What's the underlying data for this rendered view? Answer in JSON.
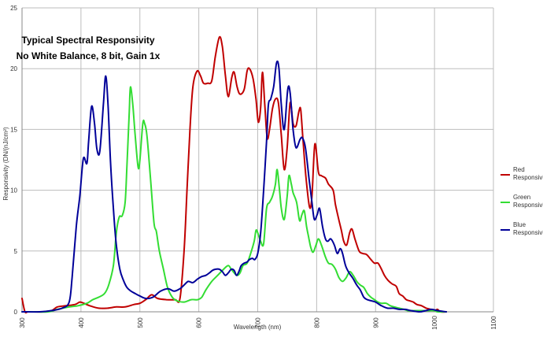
{
  "chart_data": {
    "type": "line",
    "title_lines": [
      "Typical Spectral Responsivity",
      "No White Balance, 8 bit, Gain 1x"
    ],
    "xlabel": "Wavelength (nm)",
    "ylabel": "Responsivity (DN/(nJ/cm²)",
    "xlim": [
      300,
      1100
    ],
    "ylim": [
      0,
      25
    ],
    "xticks": [
      "300",
      "400",
      "500",
      "600",
      "700",
      "800",
      "900",
      "1000",
      "1100"
    ],
    "yticks": [
      "0",
      "5",
      "10",
      "15",
      "20",
      "25"
    ],
    "grid": true,
    "legend_position": "right",
    "series": [
      {
        "name": "Red Responsivity",
        "color": "#c00000",
        "points": [
          [
            300,
            1.1
          ],
          [
            305,
            0
          ],
          [
            310,
            0
          ],
          [
            320,
            0
          ],
          [
            335,
            0
          ],
          [
            350,
            0.1
          ],
          [
            360,
            0.4
          ],
          [
            375,
            0.5
          ],
          [
            390,
            0.6
          ],
          [
            398,
            0.8
          ],
          [
            405,
            0.7
          ],
          [
            415,
            0.5
          ],
          [
            430,
            0.3
          ],
          [
            445,
            0.3
          ],
          [
            460,
            0.4
          ],
          [
            475,
            0.4
          ],
          [
            490,
            0.6
          ],
          [
            500,
            0.7
          ],
          [
            510,
            1.0
          ],
          [
            520,
            1.4
          ],
          [
            530,
            1.1
          ],
          [
            545,
            1.0
          ],
          [
            560,
            1.0
          ],
          [
            568,
            1.1
          ],
          [
            575,
            5
          ],
          [
            580,
            10
          ],
          [
            585,
            15
          ],
          [
            590,
            18.5
          ],
          [
            597,
            19.8
          ],
          [
            603,
            19.4
          ],
          [
            608,
            18.8
          ],
          [
            615,
            18.8
          ],
          [
            622,
            19.0
          ],
          [
            628,
            21
          ],
          [
            635,
            22.6
          ],
          [
            640,
            21.8
          ],
          [
            645,
            19.5
          ],
          [
            650,
            17.7
          ],
          [
            656,
            19.3
          ],
          [
            660,
            19.7
          ],
          [
            665,
            18.5
          ],
          [
            670,
            17.9
          ],
          [
            677,
            18.3
          ],
          [
            682,
            19.8
          ],
          [
            686,
            20.0
          ],
          [
            692,
            19.2
          ],
          [
            697,
            17.5
          ],
          [
            701,
            15.6
          ],
          [
            705,
            16.8
          ],
          [
            708,
            19.7
          ],
          [
            712,
            17.0
          ],
          [
            716,
            14.3
          ],
          [
            720,
            15.0
          ],
          [
            725,
            16.7
          ],
          [
            730,
            17.5
          ],
          [
            735,
            17.2
          ],
          [
            740,
            14.5
          ],
          [
            745,
            11.7
          ],
          [
            750,
            13.5
          ],
          [
            755,
            17.2
          ],
          [
            760,
            15.5
          ],
          [
            765,
            15.3
          ],
          [
            770,
            16.5
          ],
          [
            773,
            16.6
          ],
          [
            777,
            14.0
          ],
          [
            782,
            11.0
          ],
          [
            788,
            8.6
          ],
          [
            792,
            9.5
          ],
          [
            797,
            13.8
          ],
          [
            803,
            11.5
          ],
          [
            808,
            11.2
          ],
          [
            815,
            11.0
          ],
          [
            820,
            10.5
          ],
          [
            828,
            10.0
          ],
          [
            832,
            8.8
          ],
          [
            838,
            7.5
          ],
          [
            842,
            6.7
          ],
          [
            846,
            5.8
          ],
          [
            851,
            5.5
          ],
          [
            856,
            6.5
          ],
          [
            860,
            6.8
          ],
          [
            865,
            6.0
          ],
          [
            872,
            5.0
          ],
          [
            878,
            4.8
          ],
          [
            885,
            4.7
          ],
          [
            892,
            4.3
          ],
          [
            898,
            4.0
          ],
          [
            904,
            4.0
          ],
          [
            909,
            3.6
          ],
          [
            915,
            3.0
          ],
          [
            921,
            2.6
          ],
          [
            928,
            2.3
          ],
          [
            935,
            2.1
          ],
          [
            940,
            1.5
          ],
          [
            946,
            1.3
          ],
          [
            952,
            1.0
          ],
          [
            958,
            0.9
          ],
          [
            964,
            0.8
          ],
          [
            970,
            0.6
          ],
          [
            978,
            0.5
          ],
          [
            986,
            0.3
          ],
          [
            994,
            0.2
          ],
          [
            1000,
            0.1
          ],
          [
            1005,
            0.2
          ],
          [
            1010,
            0.0
          ],
          [
            1020,
            0.0
          ]
        ]
      },
      {
        "name": "Green Responsivity",
        "color": "#33dd33",
        "points": [
          [
            300,
            0
          ],
          [
            320,
            0
          ],
          [
            345,
            0
          ],
          [
            360,
            0.2
          ],
          [
            380,
            0.4
          ],
          [
            395,
            0.5
          ],
          [
            410,
            0.7
          ],
          [
            420,
            1.0
          ],
          [
            430,
            1.2
          ],
          [
            440,
            1.5
          ],
          [
            447,
            2.2
          ],
          [
            455,
            3.8
          ],
          [
            460,
            6.5
          ],
          [
            465,
            7.8
          ],
          [
            470,
            7.9
          ],
          [
            475,
            9
          ],
          [
            478,
            12
          ],
          [
            482,
            16.5
          ],
          [
            484,
            18.5
          ],
          [
            488,
            17.0
          ],
          [
            492,
            14.5
          ],
          [
            497,
            11.9
          ],
          [
            500,
            12.5
          ],
          [
            505,
            15.5
          ],
          [
            508,
            15.5
          ],
          [
            512,
            14.5
          ],
          [
            518,
            11.0
          ],
          [
            524,
            7.3
          ],
          [
            528,
            6.6
          ],
          [
            533,
            5.0
          ],
          [
            540,
            3.5
          ],
          [
            547,
            2.0
          ],
          [
            555,
            1.2
          ],
          [
            563,
            0.9
          ],
          [
            575,
            0.8
          ],
          [
            587,
            1.0
          ],
          [
            598,
            1.0
          ],
          [
            605,
            1.2
          ],
          [
            612,
            1.8
          ],
          [
            622,
            2.5
          ],
          [
            632,
            3.0
          ],
          [
            642,
            3.5
          ],
          [
            650,
            3.8
          ],
          [
            655,
            3.5
          ],
          [
            660,
            3.2
          ],
          [
            665,
            3.0
          ],
          [
            670,
            3.2
          ],
          [
            675,
            3.8
          ],
          [
            682,
            4.0
          ],
          [
            688,
            4.8
          ],
          [
            694,
            5.8
          ],
          [
            697,
            6.7
          ],
          [
            700,
            6.5
          ],
          [
            705,
            5.8
          ],
          [
            710,
            5.6
          ],
          [
            715,
            8.5
          ],
          [
            720,
            9.0
          ],
          [
            725,
            9.5
          ],
          [
            730,
            10.5
          ],
          [
            733,
            11.7
          ],
          [
            737,
            10.0
          ],
          [
            740,
            8.5
          ],
          [
            745,
            7.6
          ],
          [
            750,
            9.5
          ],
          [
            753,
            11.2
          ],
          [
            757,
            10.5
          ],
          [
            760,
            9.8
          ],
          [
            766,
            9.0
          ],
          [
            771,
            7.5
          ],
          [
            775,
            8.0
          ],
          [
            779,
            8.3
          ],
          [
            783,
            7.0
          ],
          [
            787,
            6.0
          ],
          [
            790,
            5.3
          ],
          [
            794,
            4.9
          ],
          [
            799,
            5.5
          ],
          [
            803,
            6.0
          ],
          [
            808,
            5.5
          ],
          [
            815,
            4.5
          ],
          [
            820,
            4.0
          ],
          [
            826,
            3.9
          ],
          [
            832,
            3.5
          ],
          [
            838,
            2.8
          ],
          [
            844,
            2.5
          ],
          [
            850,
            2.8
          ],
          [
            856,
            3.3
          ],
          [
            862,
            3.0
          ],
          [
            868,
            2.5
          ],
          [
            874,
            2.2
          ],
          [
            880,
            2.0
          ],
          [
            886,
            1.5
          ],
          [
            892,
            1.2
          ],
          [
            898,
            1.0
          ],
          [
            904,
            0.8
          ],
          [
            910,
            0.7
          ],
          [
            918,
            0.7
          ],
          [
            925,
            0.5
          ],
          [
            932,
            0.4
          ],
          [
            940,
            0.3
          ],
          [
            948,
            0.2
          ],
          [
            955,
            0.1
          ],
          [
            965,
            0.1
          ],
          [
            975,
            0.1
          ],
          [
            985,
            0.1
          ],
          [
            1000,
            0.1
          ],
          [
            1005,
            0.0
          ],
          [
            1020,
            0.0
          ]
        ]
      },
      {
        "name": "Blue Responsivity",
        "color": "#000099",
        "points": [
          [
            300,
            0
          ],
          [
            330,
            0
          ],
          [
            350,
            0.1
          ],
          [
            368,
            0.3
          ],
          [
            380,
            0.8
          ],
          [
            385,
            2.8
          ],
          [
            392,
            7
          ],
          [
            398,
            9.5
          ],
          [
            404,
            12.6
          ],
          [
            410,
            12.2
          ],
          [
            413,
            14.0
          ],
          [
            418,
            16.9
          ],
          [
            423,
            15.5
          ],
          [
            427,
            13.4
          ],
          [
            432,
            13.2
          ],
          [
            438,
            17.0
          ],
          [
            442,
            19.4
          ],
          [
            446,
            17.0
          ],
          [
            450,
            12.5
          ],
          [
            455,
            8.5
          ],
          [
            460,
            5.5
          ],
          [
            466,
            3.5
          ],
          [
            472,
            2.6
          ],
          [
            478,
            2.0
          ],
          [
            485,
            1.7
          ],
          [
            492,
            1.5
          ],
          [
            500,
            1.3
          ],
          [
            510,
            1.1
          ],
          [
            522,
            1.2
          ],
          [
            535,
            1.7
          ],
          [
            548,
            1.9
          ],
          [
            558,
            1.7
          ],
          [
            568,
            1.9
          ],
          [
            575,
            2.2
          ],
          [
            582,
            2.5
          ],
          [
            590,
            2.4
          ],
          [
            598,
            2.7
          ],
          [
            605,
            2.9
          ],
          [
            612,
            3.0
          ],
          [
            618,
            3.2
          ],
          [
            623,
            3.4
          ],
          [
            628,
            3.5
          ],
          [
            635,
            3.5
          ],
          [
            640,
            3.3
          ],
          [
            645,
            3.0
          ],
          [
            650,
            3.2
          ],
          [
            655,
            3.5
          ],
          [
            660,
            3.4
          ],
          [
            664,
            3.0
          ],
          [
            668,
            3.3
          ],
          [
            672,
            3.8
          ],
          [
            677,
            4.0
          ],
          [
            682,
            4.1
          ],
          [
            686,
            4.3
          ],
          [
            691,
            4.4
          ],
          [
            695,
            4.3
          ],
          [
            700,
            4.8
          ],
          [
            705,
            6.5
          ],
          [
            710,
            10.0
          ],
          [
            715,
            14.0
          ],
          [
            718,
            17.0
          ],
          [
            722,
            17.5
          ],
          [
            727,
            18.5
          ],
          [
            732,
            20.5
          ],
          [
            736,
            20.0
          ],
          [
            740,
            17.0
          ],
          [
            745,
            15.0
          ],
          [
            751,
            18.3
          ],
          [
            755,
            18.0
          ],
          [
            760,
            15.0
          ],
          [
            765,
            13.5
          ],
          [
            772,
            14.2
          ],
          [
            776,
            14.3
          ],
          [
            781,
            13.5
          ],
          [
            787,
            11.0
          ],
          [
            792,
            9.0
          ],
          [
            796,
            7.6
          ],
          [
            801,
            8.0
          ],
          [
            805,
            8.5
          ],
          [
            810,
            7.0
          ],
          [
            815,
            6.0
          ],
          [
            819,
            5.8
          ],
          [
            824,
            6.0
          ],
          [
            830,
            5.5
          ],
          [
            835,
            4.8
          ],
          [
            840,
            5.2
          ],
          [
            844,
            4.8
          ],
          [
            849,
            3.8
          ],
          [
            855,
            3.2
          ],
          [
            861,
            2.8
          ],
          [
            868,
            2.2
          ],
          [
            874,
            1.8
          ],
          [
            880,
            1.2
          ],
          [
            886,
            1.0
          ],
          [
            893,
            0.9
          ],
          [
            900,
            0.8
          ],
          [
            910,
            0.5
          ],
          [
            920,
            0.3
          ],
          [
            930,
            0.3
          ],
          [
            940,
            0.2
          ],
          [
            950,
            0.2
          ],
          [
            960,
            0.1
          ],
          [
            975,
            0.0
          ],
          [
            985,
            0.1
          ],
          [
            995,
            0.2
          ],
          [
            1005,
            0.1
          ],
          [
            1020,
            0.0
          ]
        ]
      }
    ]
  }
}
